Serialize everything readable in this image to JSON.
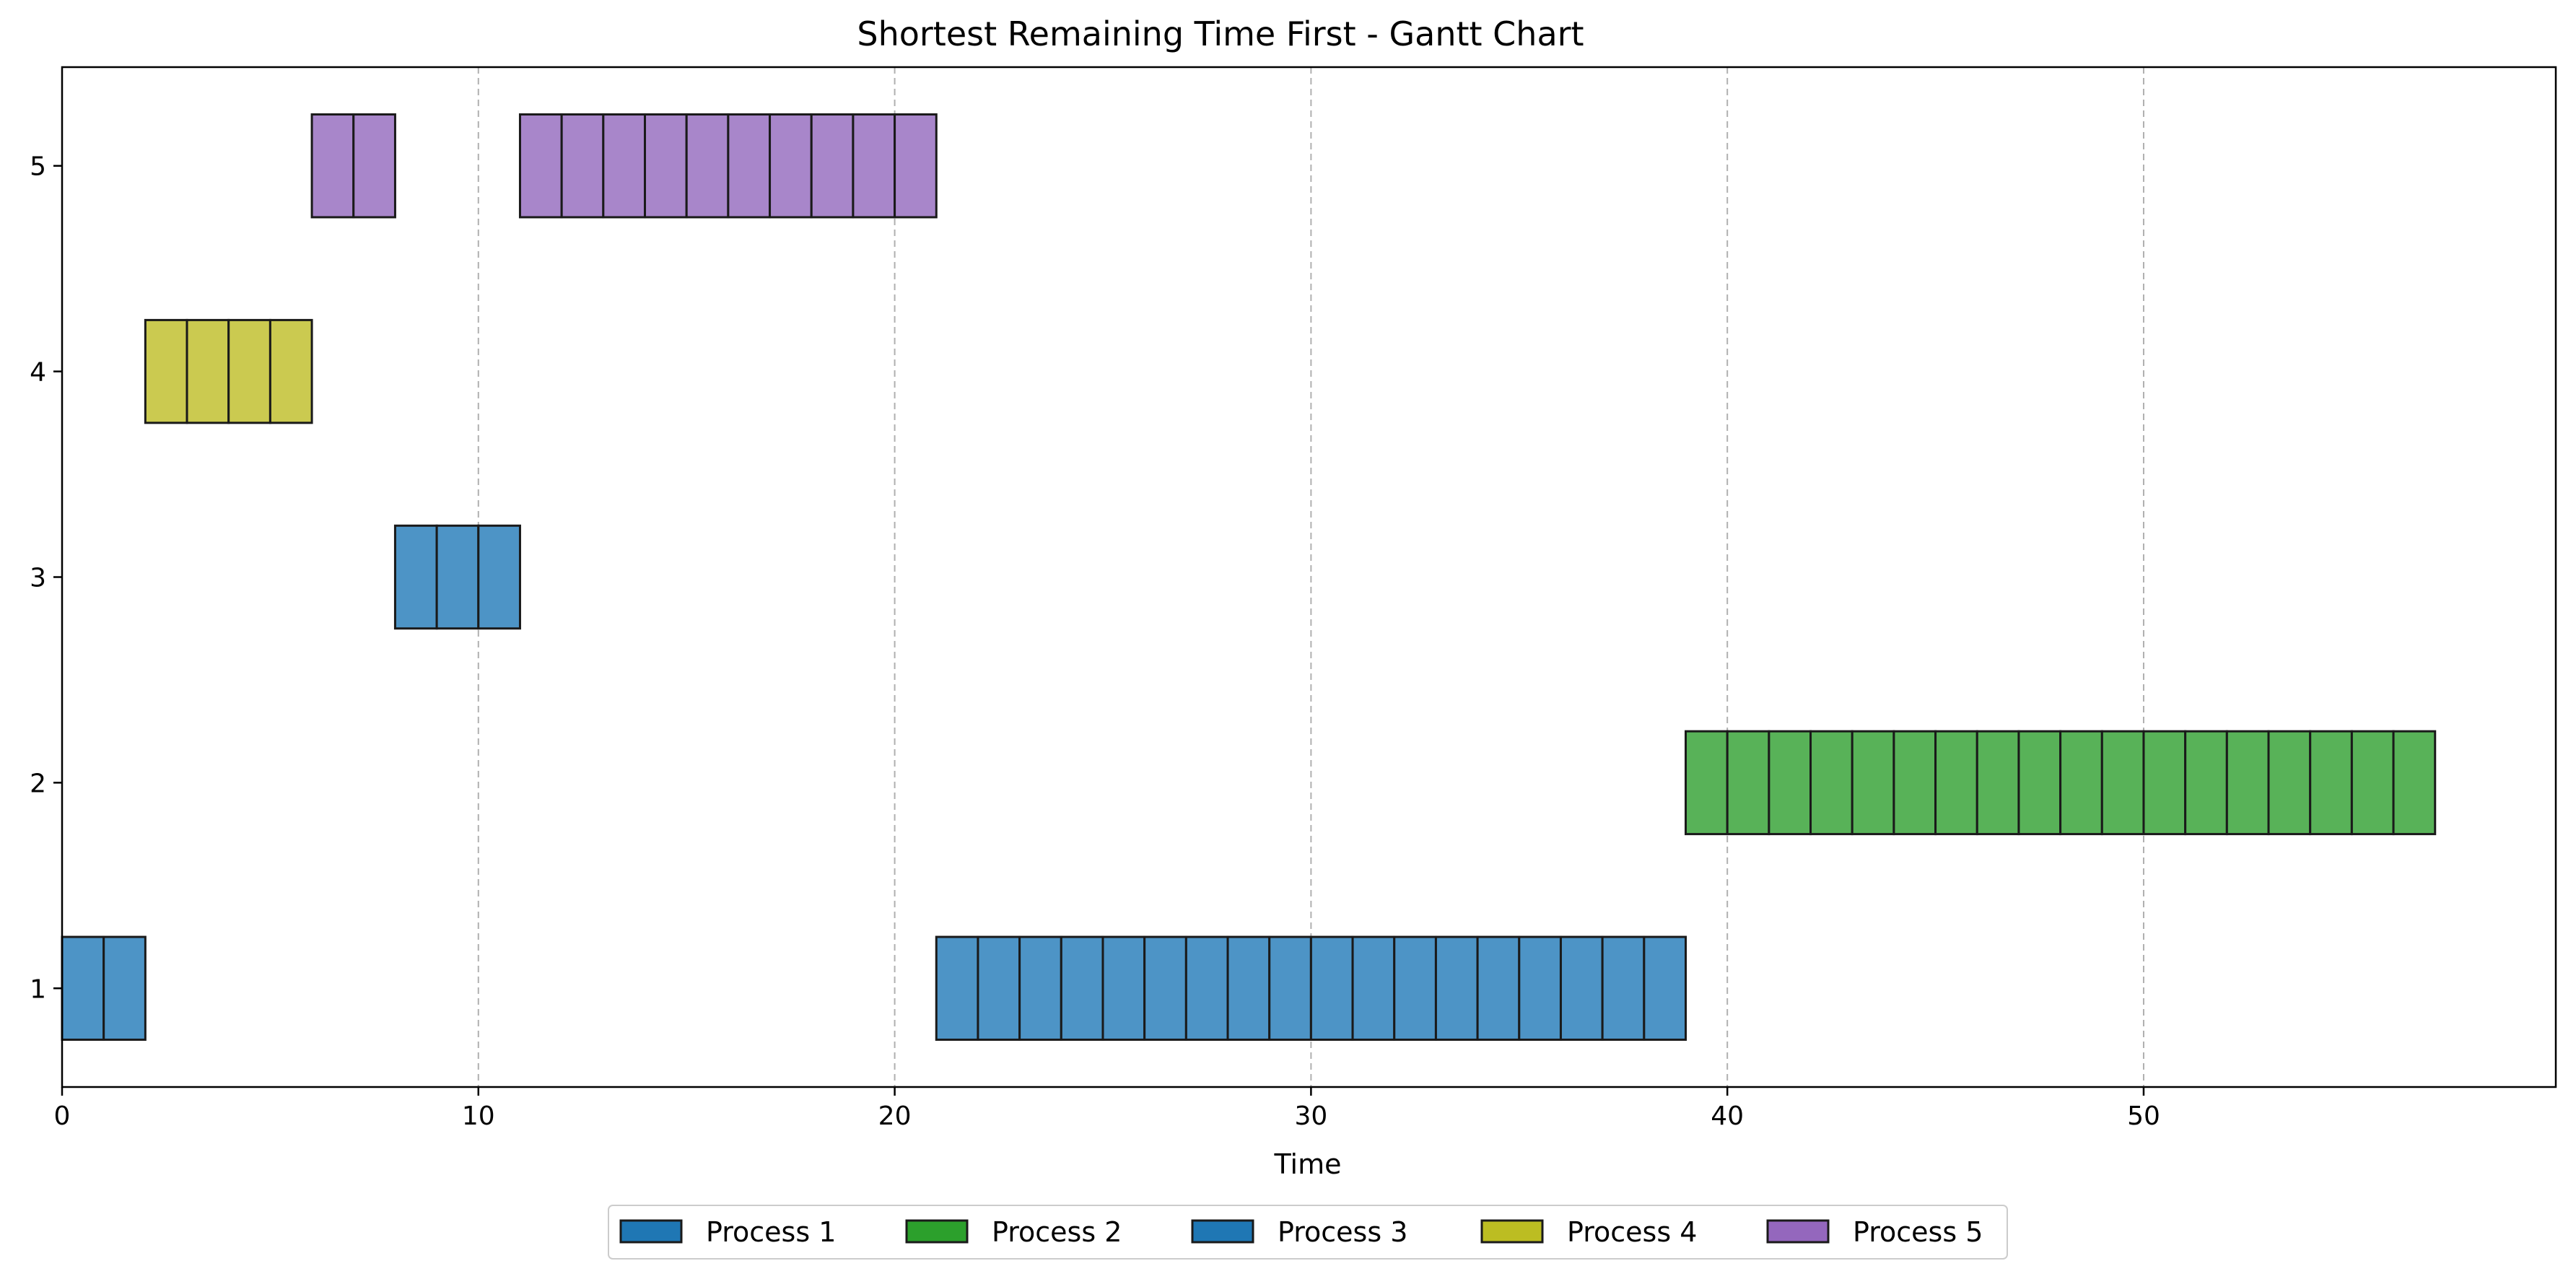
{
  "chart_data": {
    "type": "gantt",
    "title": "Shortest Remaining Time First - Gantt Chart",
    "xlabel": "Time",
    "ylabel": "",
    "xlim": [
      0,
      59.9
    ],
    "ylim": [
      0.52,
      5.48
    ],
    "x_ticks": [
      0,
      10,
      20,
      30,
      40,
      50
    ],
    "y_ticks": [
      1,
      2,
      3,
      4,
      5
    ],
    "grid": "vertical dashed at major x ticks",
    "legend_position": "bottom-center",
    "series": [
      {
        "name": "Process 1",
        "y": 1,
        "color": "#4d94c6",
        "legend_color": "#1f77b4",
        "segments": [
          [
            0,
            1
          ],
          [
            1,
            2
          ],
          [
            21,
            22
          ],
          [
            22,
            23
          ],
          [
            23,
            24
          ],
          [
            24,
            25
          ],
          [
            25,
            26
          ],
          [
            26,
            27
          ],
          [
            27,
            28
          ],
          [
            28,
            29
          ],
          [
            29,
            30
          ],
          [
            30,
            31
          ],
          [
            31,
            32
          ],
          [
            32,
            33
          ],
          [
            33,
            34
          ],
          [
            34,
            35
          ],
          [
            35,
            36
          ],
          [
            36,
            37
          ],
          [
            37,
            38
          ],
          [
            38,
            39
          ]
        ]
      },
      {
        "name": "Process 2",
        "y": 2,
        "color": "#58b258",
        "legend_color": "#2ca02c",
        "segments": [
          [
            39,
            40
          ],
          [
            40,
            41
          ],
          [
            41,
            42
          ],
          [
            42,
            43
          ],
          [
            43,
            44
          ],
          [
            44,
            45
          ],
          [
            45,
            46
          ],
          [
            46,
            47
          ],
          [
            47,
            48
          ],
          [
            48,
            49
          ],
          [
            49,
            50
          ],
          [
            50,
            51
          ],
          [
            51,
            52
          ],
          [
            52,
            53
          ],
          [
            53,
            54
          ],
          [
            54,
            55
          ],
          [
            55,
            56
          ],
          [
            56,
            57
          ]
        ]
      },
      {
        "name": "Process 3",
        "y": 3,
        "color": "#4d94c6",
        "legend_color": "#1f77b4",
        "segments": [
          [
            8,
            9
          ],
          [
            9,
            10
          ],
          [
            10,
            11
          ]
        ]
      },
      {
        "name": "Process 4",
        "y": 4,
        "color": "#cbca50",
        "legend_color": "#bcbd22",
        "segments": [
          [
            2,
            3
          ],
          [
            3,
            4
          ],
          [
            4,
            5
          ],
          [
            5,
            6
          ]
        ]
      },
      {
        "name": "Process 5",
        "y": 5,
        "color": "#a886ca",
        "legend_color": "#9467bd",
        "segments": [
          [
            6,
            7
          ],
          [
            7,
            8
          ],
          [
            11,
            12
          ],
          [
            12,
            13
          ],
          [
            13,
            14
          ],
          [
            14,
            15
          ],
          [
            15,
            16
          ],
          [
            16,
            17
          ],
          [
            17,
            18
          ],
          [
            18,
            19
          ],
          [
            19,
            20
          ],
          [
            20,
            21
          ]
        ]
      }
    ]
  }
}
